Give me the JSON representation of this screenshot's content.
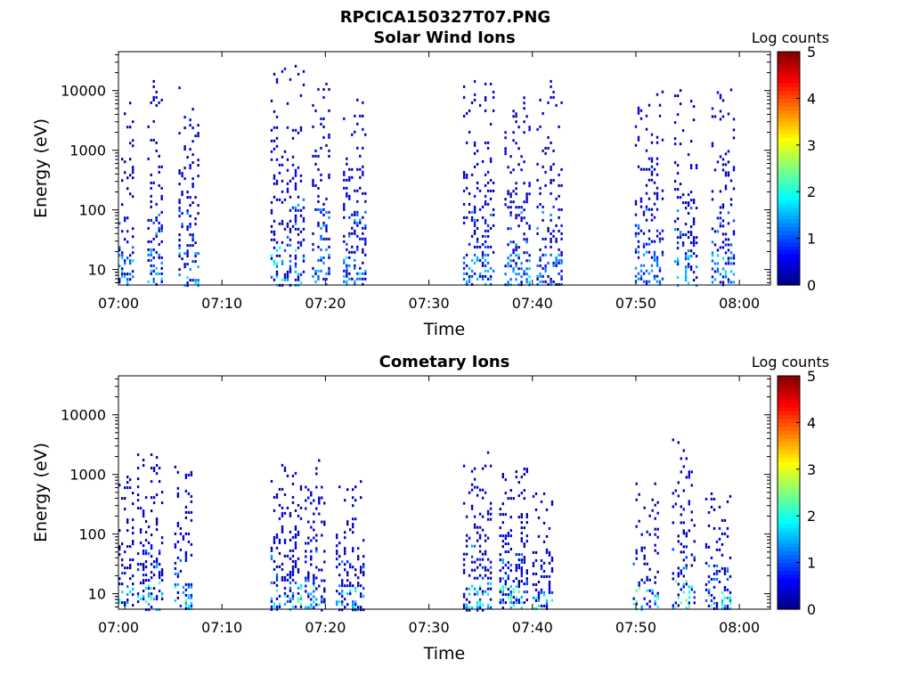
{
  "figure_title": "RPCICA150327T07.PNG",
  "chart_data": [
    {
      "type": "heatmap",
      "title": "Solar Wind Ions",
      "xlabel": "Time",
      "ylabel": "Energy (eV)",
      "x_ticks": [
        "07:00",
        "07:10",
        "07:20",
        "07:30",
        "07:40",
        "07:50",
        "08:00"
      ],
      "x_tick_minutes": [
        0,
        10,
        20,
        30,
        40,
        50,
        60
      ],
      "xlim_minutes": [
        0,
        63
      ],
      "y_scale": "log",
      "ylim": [
        5.5,
        45000
      ],
      "y_ticks": [
        "10",
        "100",
        "1000",
        "10000"
      ],
      "y_tick_values": [
        10,
        100,
        1000,
        10000
      ],
      "colorbar": {
        "label": "Log counts",
        "ticks": [
          "0",
          "1",
          "2",
          "3",
          "4",
          "5"
        ],
        "range": [
          0,
          5
        ],
        "colormap": "jet"
      },
      "bursts": [
        {
          "start_min": 0.0,
          "end_min": 1.3,
          "e_low": 7,
          "e_high": 8000,
          "peak": 1.8,
          "density": 0.25
        },
        {
          "start_min": 2.8,
          "end_min": 4.2,
          "e_low": 6,
          "e_high": 15000,
          "peak": 1.8,
          "density": 0.3
        },
        {
          "start_min": 5.8,
          "end_min": 7.7,
          "e_low": 6,
          "e_high": 13000,
          "peak": 1.9,
          "density": 0.3
        },
        {
          "start_min": 14.7,
          "end_min": 17.8,
          "e_low": 6,
          "e_high": 30000,
          "peak": 2.0,
          "density": 0.28
        },
        {
          "start_min": 18.7,
          "end_min": 20.5,
          "e_low": 6,
          "e_high": 15000,
          "peak": 1.6,
          "density": 0.3
        },
        {
          "start_min": 21.7,
          "end_min": 24.0,
          "e_low": 6,
          "e_high": 9000,
          "peak": 1.9,
          "density": 0.3
        },
        {
          "start_min": 33.3,
          "end_min": 36.3,
          "e_low": 6,
          "e_high": 15000,
          "peak": 1.6,
          "density": 0.3
        },
        {
          "start_min": 37.3,
          "end_min": 39.7,
          "e_low": 6,
          "e_high": 8000,
          "peak": 1.9,
          "density": 0.3
        },
        {
          "start_min": 40.4,
          "end_min": 42.8,
          "e_low": 6,
          "e_high": 15000,
          "peak": 1.5,
          "density": 0.3
        },
        {
          "start_min": 49.9,
          "end_min": 52.7,
          "e_low": 6,
          "e_high": 10000,
          "peak": 1.6,
          "density": 0.3
        },
        {
          "start_min": 53.7,
          "end_min": 55.9,
          "e_low": 6,
          "e_high": 13000,
          "peak": 1.9,
          "density": 0.3
        },
        {
          "start_min": 57.3,
          "end_min": 59.4,
          "e_low": 6,
          "e_high": 12000,
          "peak": 1.8,
          "density": 0.3
        }
      ]
    },
    {
      "type": "heatmap",
      "title": "Cometary Ions",
      "xlabel": "Time",
      "ylabel": "Energy (eV)",
      "x_ticks": [
        "07:00",
        "07:10",
        "07:20",
        "07:30",
        "07:40",
        "07:50",
        "08:00"
      ],
      "x_tick_minutes": [
        0,
        10,
        20,
        30,
        40,
        50,
        60
      ],
      "xlim_minutes": [
        0,
        63
      ],
      "y_scale": "log",
      "ylim": [
        5.5,
        45000
      ],
      "y_ticks": [
        "10",
        "100",
        "1000",
        "10000"
      ],
      "y_tick_values": [
        10,
        100,
        1000,
        10000
      ],
      "colorbar": {
        "label": "Log counts",
        "ticks": [
          "0",
          "1",
          "2",
          "3",
          "4",
          "5"
        ],
        "range": [
          0,
          5
        ],
        "colormap": "jet"
      },
      "bursts": [
        {
          "start_min": 0.0,
          "end_min": 1.3,
          "e_low": 6,
          "e_high": 1300,
          "peak": 2.0,
          "density": 0.3
        },
        {
          "start_min": 1.8,
          "end_min": 4.2,
          "e_low": 6,
          "e_high": 2500,
          "peak": 2.6,
          "density": 0.4
        },
        {
          "start_min": 5.4,
          "end_min": 7.1,
          "e_low": 6,
          "e_high": 1400,
          "peak": 2.3,
          "density": 0.4
        },
        {
          "start_min": 14.7,
          "end_min": 17.6,
          "e_low": 6,
          "e_high": 1500,
          "peak": 2.4,
          "density": 0.35
        },
        {
          "start_min": 18.0,
          "end_min": 20.0,
          "e_low": 6,
          "e_high": 2000,
          "peak": 2.2,
          "density": 0.35
        },
        {
          "start_min": 21.0,
          "end_min": 23.8,
          "e_low": 6,
          "e_high": 800,
          "peak": 2.1,
          "density": 0.35
        },
        {
          "start_min": 33.3,
          "end_min": 36.0,
          "e_low": 6,
          "e_high": 3000,
          "peak": 2.1,
          "density": 0.35
        },
        {
          "start_min": 36.8,
          "end_min": 39.5,
          "e_low": 6,
          "e_high": 1300,
          "peak": 2.5,
          "density": 0.4
        },
        {
          "start_min": 40.0,
          "end_min": 42.0,
          "e_low": 6,
          "e_high": 500,
          "peak": 2.1,
          "density": 0.35
        },
        {
          "start_min": 49.7,
          "end_min": 52.2,
          "e_low": 8,
          "e_high": 1000,
          "peak": 2.7,
          "density": 0.3
        },
        {
          "start_min": 53.5,
          "end_min": 55.8,
          "e_low": 7,
          "e_high": 4000,
          "peak": 2.9,
          "density": 0.3
        },
        {
          "start_min": 56.7,
          "end_min": 59.2,
          "e_low": 7,
          "e_high": 500,
          "peak": 2.6,
          "density": 0.35
        }
      ]
    }
  ]
}
